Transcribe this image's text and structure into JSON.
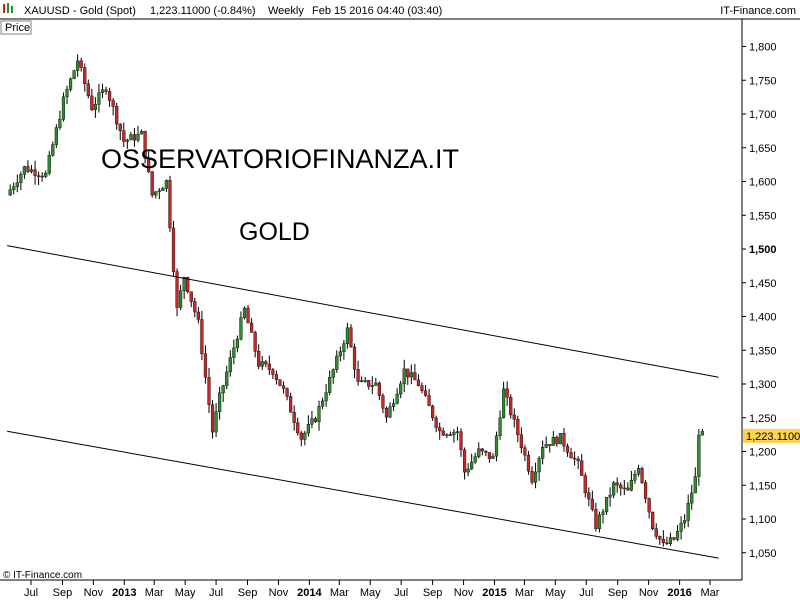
{
  "header": {
    "symbol": "XAUUSD - Gold (Spot)",
    "quote": "1,223.11000 (-0.84%)",
    "interval": "Weekly",
    "datetime": "Feb 15 2016 04:40 (03:40)",
    "source": "IT-Finance.com"
  },
  "panel_label": "Price",
  "copyright": "© IT-Finance.com",
  "colors": {
    "up": "#2e8b2e",
    "down": "#c62828",
    "tag_bg": "#ffd24d",
    "trendline": "#000000"
  },
  "chart_data": {
    "type": "candlestick",
    "title": "XAUUSD - Gold (Spot)",
    "overlay_text": [
      "OSSERVATORIOFINANZA.IT",
      "GOLD"
    ],
    "ylim": [
      1020,
      1820
    ],
    "y_ticks": [
      1050,
      1100,
      1150,
      1200,
      1250,
      1300,
      1350,
      1400,
      1450,
      1500,
      1550,
      1600,
      1650,
      1700,
      1750,
      1800
    ],
    "y_tick_labels": [
      "1,050",
      "1,100",
      "1,150",
      "1,200",
      "1,250",
      "1,300",
      "1,350",
      "1,400",
      "1,450",
      "1,500",
      "1,550",
      "1,600",
      "1,650",
      "1,700",
      "1,750",
      "1,800"
    ],
    "y_bold_tick": "1,500",
    "last_price_label": "1,223.1100",
    "last_price": 1223.11,
    "x_ticks": [
      {
        "label": "Jul",
        "date": "2012-07-01",
        "bold": false
      },
      {
        "label": "Sep",
        "date": "2012-09-01",
        "bold": false
      },
      {
        "label": "Nov",
        "date": "2012-11-01",
        "bold": false
      },
      {
        "label": "2013",
        "date": "2013-01-01",
        "bold": true
      },
      {
        "label": "Mar",
        "date": "2013-03-01",
        "bold": false
      },
      {
        "label": "May",
        "date": "2013-05-01",
        "bold": false
      },
      {
        "label": "Jul",
        "date": "2013-07-01",
        "bold": false
      },
      {
        "label": "Sep",
        "date": "2013-09-01",
        "bold": false
      },
      {
        "label": "Nov",
        "date": "2013-11-01",
        "bold": false
      },
      {
        "label": "2014",
        "date": "2014-01-01",
        "bold": true
      },
      {
        "label": "Mar",
        "date": "2014-03-01",
        "bold": false
      },
      {
        "label": "May",
        "date": "2014-05-01",
        "bold": false
      },
      {
        "label": "Jul",
        "date": "2014-07-01",
        "bold": false
      },
      {
        "label": "Sep",
        "date": "2014-09-01",
        "bold": false
      },
      {
        "label": "Nov",
        "date": "2014-11-01",
        "bold": false
      },
      {
        "label": "2015",
        "date": "2015-01-01",
        "bold": true
      },
      {
        "label": "Mar",
        "date": "2015-03-01",
        "bold": false
      },
      {
        "label": "May",
        "date": "2015-05-01",
        "bold": false
      },
      {
        "label": "Jul",
        "date": "2015-07-01",
        "bold": false
      },
      {
        "label": "Sep",
        "date": "2015-09-01",
        "bold": false
      },
      {
        "label": "Nov",
        "date": "2015-11-01",
        "bold": false
      },
      {
        "label": "2016",
        "date": "2016-01-01",
        "bold": true
      },
      {
        "label": "Mar",
        "date": "2016-03-01",
        "bold": false
      }
    ],
    "trendlines": [
      {
        "start": [
          "2012-05-15",
          1505
        ],
        "end": [
          "2016-03-18",
          1310
        ]
      },
      {
        "start": [
          "2012-05-15",
          1230
        ],
        "end": [
          "2016-03-18",
          1042
        ]
      }
    ],
    "series_anchors": [
      [
        "2012-05-14",
        1580
      ],
      [
        "2012-06-18",
        1620
      ],
      [
        "2012-07-30",
        1610
      ],
      [
        "2012-09-03",
        1720
      ],
      [
        "2012-10-01",
        1780
      ],
      [
        "2012-10-29",
        1710
      ],
      [
        "2012-11-26",
        1740
      ],
      [
        "2012-12-31",
        1660
      ],
      [
        "2013-02-04",
        1670
      ],
      [
        "2013-02-25",
        1580
      ],
      [
        "2013-03-25",
        1600
      ],
      [
        "2013-04-15",
        1410
      ],
      [
        "2013-04-29",
        1460
      ],
      [
        "2013-05-27",
        1390
      ],
      [
        "2013-06-24",
        1230
      ],
      [
        "2013-07-08",
        1280
      ],
      [
        "2013-08-26",
        1410
      ],
      [
        "2013-09-23",
        1330
      ],
      [
        "2013-10-21",
        1320
      ],
      [
        "2013-11-11",
        1290
      ],
      [
        "2013-12-16",
        1220
      ],
      [
        "2014-01-13",
        1250
      ],
      [
        "2014-02-17",
        1320
      ],
      [
        "2014-03-17",
        1380
      ],
      [
        "2014-04-07",
        1300
      ],
      [
        "2014-05-12",
        1300
      ],
      [
        "2014-06-02",
        1250
      ],
      [
        "2014-07-07",
        1320
      ],
      [
        "2014-08-04",
        1300
      ],
      [
        "2014-09-15",
        1230
      ],
      [
        "2014-10-20",
        1230
      ],
      [
        "2014-11-03",
        1170
      ],
      [
        "2014-12-01",
        1200
      ],
      [
        "2014-12-29",
        1190
      ],
      [
        "2015-01-19",
        1290
      ],
      [
        "2015-02-23",
        1210
      ],
      [
        "2015-03-16",
        1160
      ],
      [
        "2015-04-06",
        1210
      ],
      [
        "2015-05-11",
        1220
      ],
      [
        "2015-06-15",
        1180
      ],
      [
        "2015-07-20",
        1090
      ],
      [
        "2015-08-24",
        1150
      ],
      [
        "2015-09-21",
        1140
      ],
      [
        "2015-10-12",
        1180
      ],
      [
        "2015-11-09",
        1090
      ],
      [
        "2015-11-30",
        1060
      ],
      [
        "2015-12-21",
        1070
      ],
      [
        "2016-01-11",
        1100
      ],
      [
        "2016-02-01",
        1160
      ],
      [
        "2016-02-08",
        1230
      ],
      [
        "2016-02-15",
        1223
      ]
    ]
  }
}
